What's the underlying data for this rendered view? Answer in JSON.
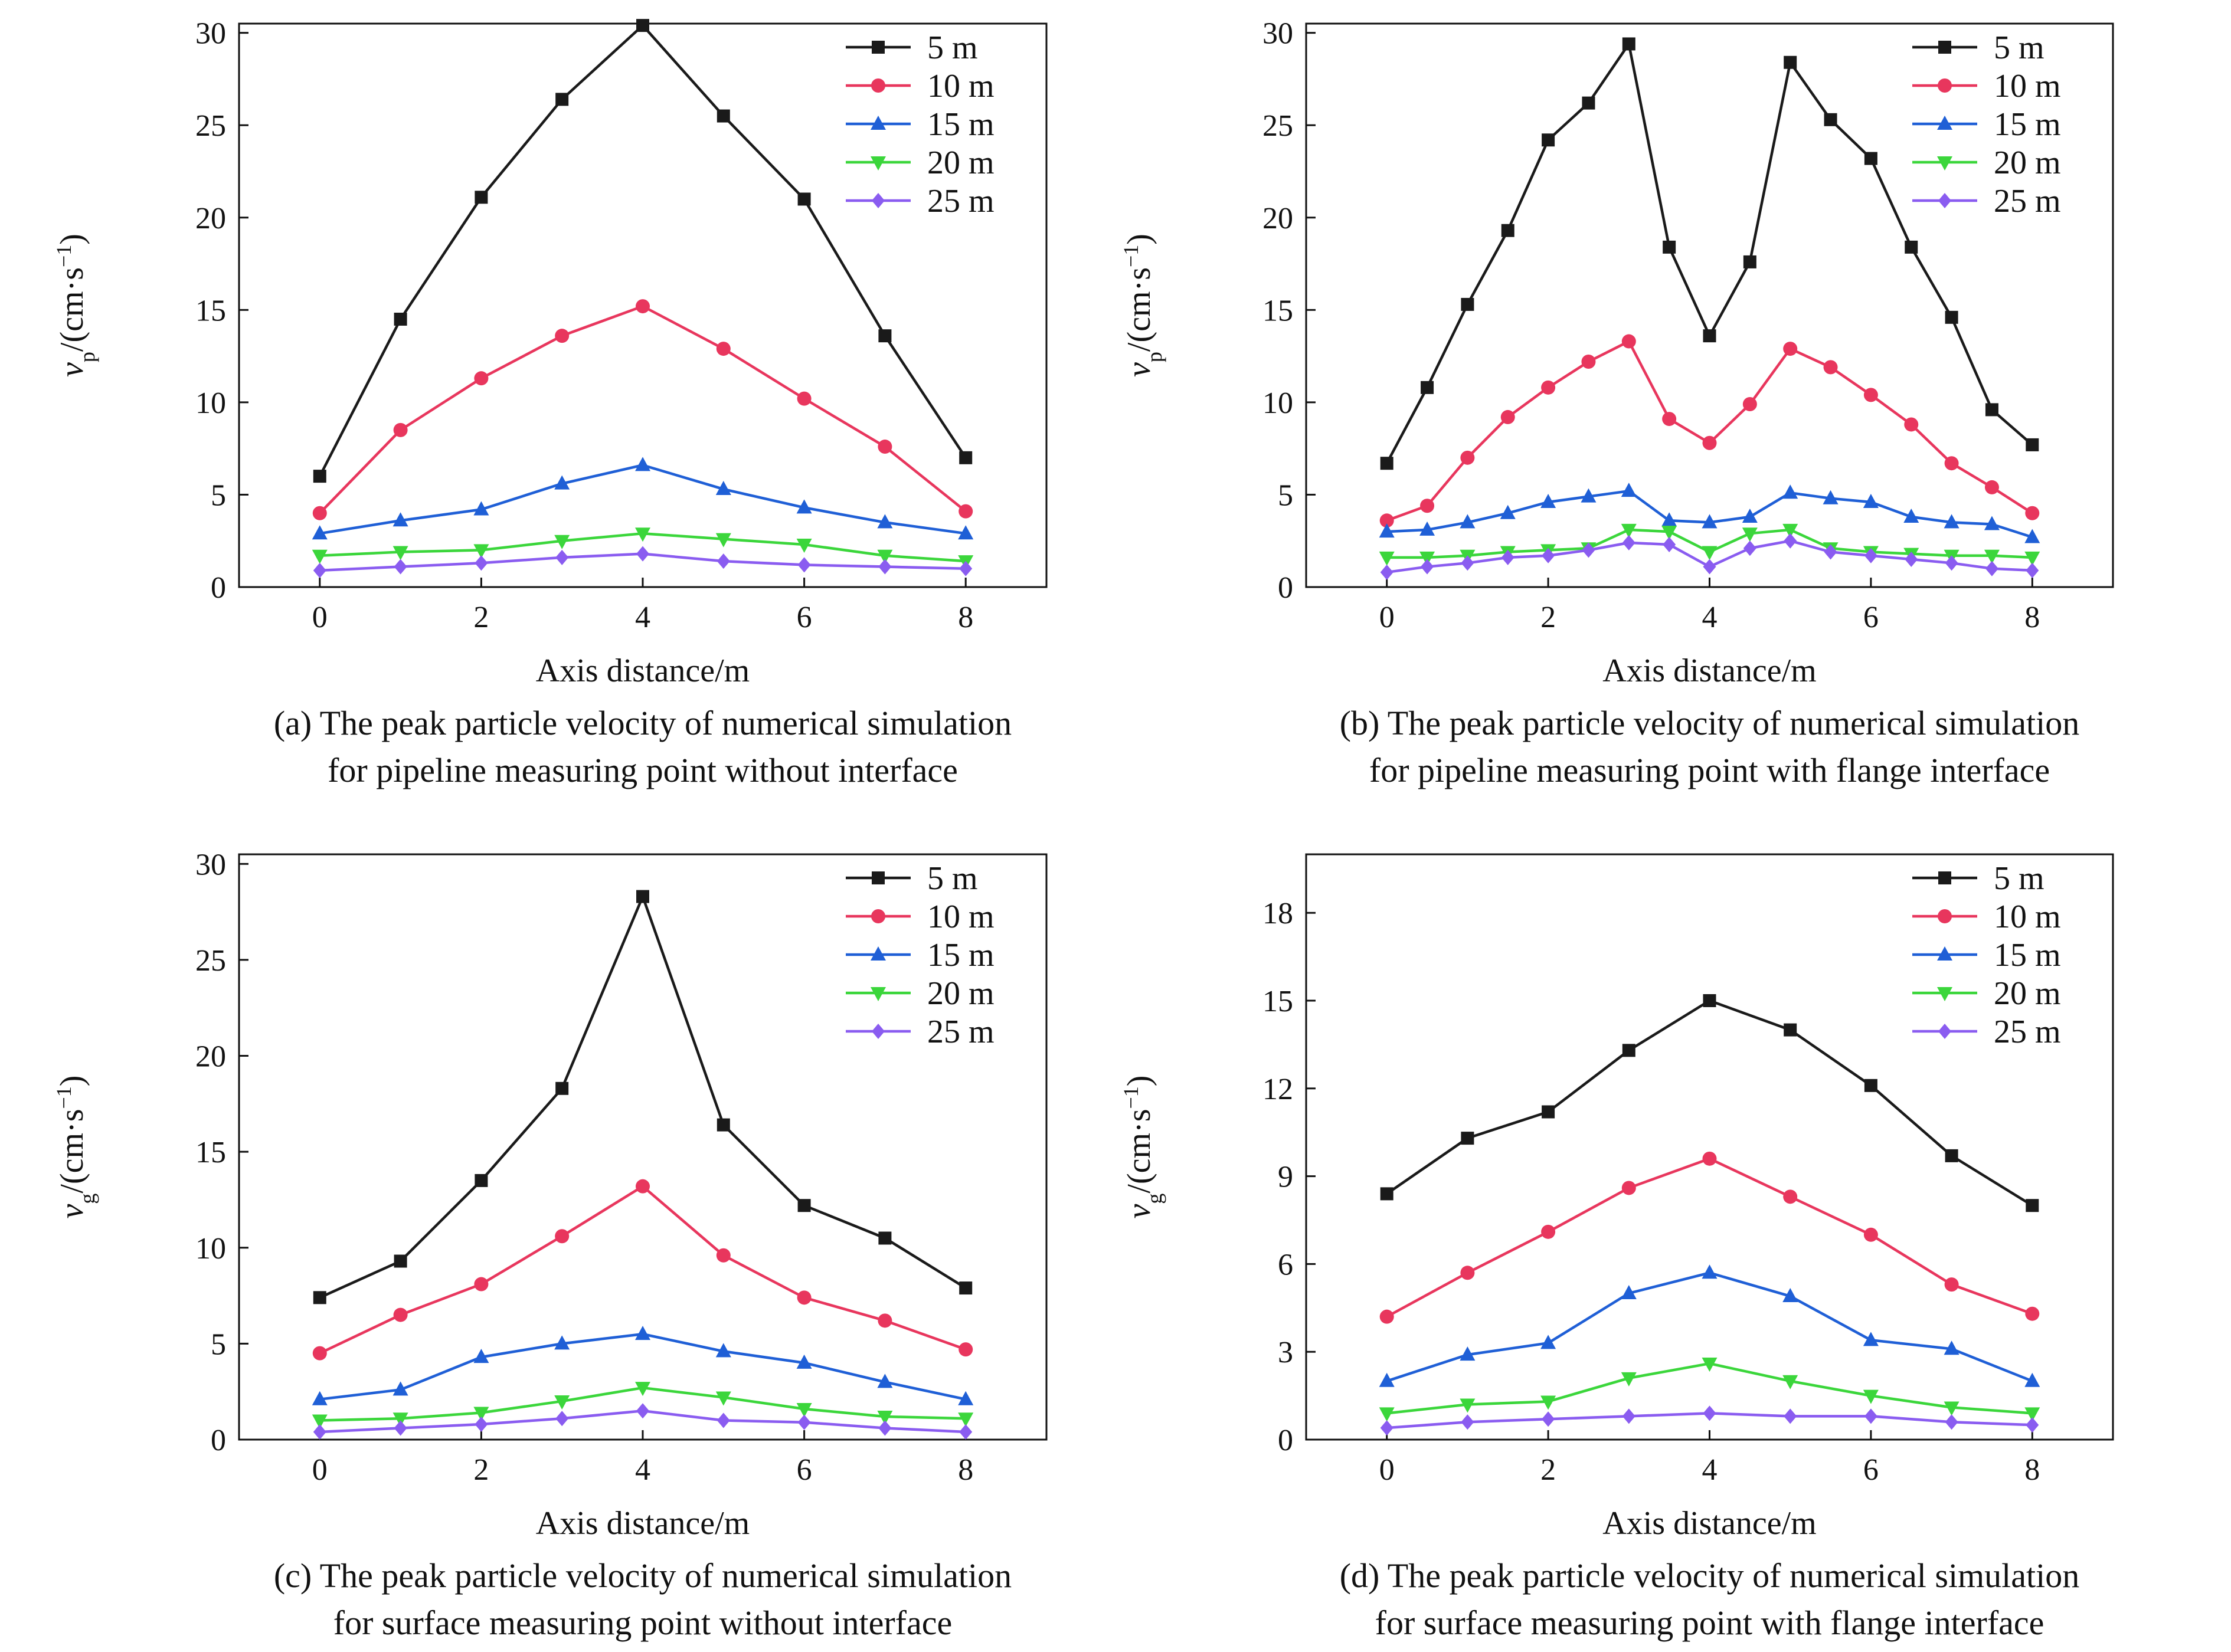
{
  "figure": {
    "series_names": [
      "5 m",
      "10 m",
      "15 m",
      "20 m",
      "25 m"
    ],
    "series_colors": [
      "#1a1a1a",
      "#e8365d",
      "#1f5fd6",
      "#3bd63b",
      "#8a5cf0"
    ],
    "series_markers": [
      "square",
      "circle",
      "triangle-up",
      "triangle-down",
      "diamond"
    ]
  },
  "chart_data": [
    {
      "type": "line",
      "ylabel": "v_p/(cm·s^-1)",
      "ylabel_var": "v",
      "ylabel_sub": "p",
      "ylabel_unit": "/(cm·s",
      "ylabel_exp": "−1",
      "ylabel_close": ")",
      "xlabel": "Axis distance/m",
      "xlim": [
        -1,
        9
      ],
      "ylim": [
        0,
        30.5
      ],
      "xticks": [
        0,
        2,
        4,
        6,
        8
      ],
      "yticks": [
        0,
        5,
        10,
        15,
        20,
        25,
        30
      ],
      "legend": "top-right",
      "caption_lines": [
        "(a) The peak particle velocity of numerical simulation",
        "for pipeline measuring point without interface"
      ],
      "series": [
        {
          "name": "5 m",
          "x": [
            0,
            1,
            2,
            3,
            4,
            5,
            6,
            7,
            8
          ],
          "y": [
            6.0,
            14.5,
            21.1,
            26.4,
            30.4,
            25.5,
            21.0,
            13.6,
            7.0
          ]
        },
        {
          "name": "10 m",
          "x": [
            0,
            1,
            2,
            3,
            4,
            5,
            6,
            7,
            8
          ],
          "y": [
            4.0,
            8.5,
            11.3,
            13.6,
            15.2,
            12.9,
            10.2,
            7.6,
            4.1
          ]
        },
        {
          "name": "15 m",
          "x": [
            0,
            1,
            2,
            3,
            4,
            5,
            6,
            7,
            8
          ],
          "y": [
            2.9,
            3.6,
            4.2,
            5.6,
            6.6,
            5.3,
            4.3,
            3.5,
            2.9
          ]
        },
        {
          "name": "20 m",
          "x": [
            0,
            1,
            2,
            3,
            4,
            5,
            6,
            7,
            8
          ],
          "y": [
            1.7,
            1.9,
            2.0,
            2.5,
            2.9,
            2.6,
            2.3,
            1.7,
            1.4
          ]
        },
        {
          "name": "25 m",
          "x": [
            0,
            1,
            2,
            3,
            4,
            5,
            6,
            7,
            8
          ],
          "y": [
            0.9,
            1.1,
            1.3,
            1.6,
            1.8,
            1.4,
            1.2,
            1.1,
            1.0
          ]
        }
      ]
    },
    {
      "type": "line",
      "ylabel": "v_p/(cm·s^-1)",
      "ylabel_var": "v",
      "ylabel_sub": "p",
      "ylabel_unit": "/(cm·s",
      "ylabel_exp": "−1",
      "ylabel_close": ")",
      "xlabel": "Axis distance/m",
      "xlim": [
        -1,
        9
      ],
      "ylim": [
        0,
        30.5
      ],
      "xticks": [
        0,
        2,
        4,
        6,
        8
      ],
      "yticks": [
        0,
        5,
        10,
        15,
        20,
        25,
        30
      ],
      "legend": "top-right",
      "caption_lines": [
        "(b) The peak particle velocity of numerical simulation",
        "for pipeline measuring point with flange interface"
      ],
      "series": [
        {
          "name": "5 m",
          "x": [
            0,
            0.5,
            1,
            1.5,
            2,
            2.5,
            3,
            3.5,
            4,
            4.5,
            5,
            5.5,
            6,
            6.5,
            7,
            7.5,
            8
          ],
          "y": [
            6.7,
            10.8,
            15.3,
            19.3,
            24.2,
            26.2,
            29.4,
            18.4,
            13.6,
            17.6,
            28.4,
            25.3,
            23.2,
            18.4,
            14.6,
            9.6,
            7.7
          ]
        },
        {
          "name": "10 m",
          "x": [
            0,
            0.5,
            1,
            1.5,
            2,
            2.5,
            3,
            3.5,
            4,
            4.5,
            5,
            5.5,
            6,
            6.5,
            7,
            7.5,
            8
          ],
          "y": [
            3.6,
            4.4,
            7.0,
            9.2,
            10.8,
            12.2,
            13.3,
            9.1,
            7.8,
            9.9,
            12.9,
            11.9,
            10.4,
            8.8,
            6.7,
            5.4,
            4.0
          ]
        },
        {
          "name": "15 m",
          "x": [
            0,
            0.5,
            1,
            1.5,
            2,
            2.5,
            3,
            3.5,
            4,
            4.5,
            5,
            5.5,
            6,
            6.5,
            7,
            7.5,
            8
          ],
          "y": [
            3.0,
            3.1,
            3.5,
            4.0,
            4.6,
            4.9,
            5.2,
            3.6,
            3.5,
            3.8,
            5.1,
            4.8,
            4.6,
            3.8,
            3.5,
            3.4,
            2.7
          ]
        },
        {
          "name": "20 m",
          "x": [
            0,
            0.5,
            1,
            1.5,
            2,
            2.5,
            3,
            3.5,
            4,
            4.5,
            5,
            5.5,
            6,
            6.5,
            7,
            7.5,
            8
          ],
          "y": [
            1.6,
            1.6,
            1.7,
            1.9,
            2.0,
            2.1,
            3.1,
            3.0,
            1.9,
            2.9,
            3.1,
            2.1,
            1.9,
            1.8,
            1.7,
            1.7,
            1.6
          ]
        },
        {
          "name": "25 m",
          "x": [
            0,
            0.5,
            1,
            1.5,
            2,
            2.5,
            3,
            3.5,
            4,
            4.5,
            5,
            5.5,
            6,
            6.5,
            7,
            7.5,
            8
          ],
          "y": [
            0.8,
            1.1,
            1.3,
            1.6,
            1.7,
            2.0,
            2.4,
            2.3,
            1.1,
            2.1,
            2.5,
            1.9,
            1.7,
            1.5,
            1.3,
            1.0,
            0.9
          ]
        }
      ]
    },
    {
      "type": "line",
      "ylabel": "v_g/(cm·s^-1)",
      "ylabel_var": "v",
      "ylabel_sub": "g",
      "ylabel_unit": "/(cm·s",
      "ylabel_exp": "−1",
      "ylabel_close": ")",
      "xlabel": "Axis distance/m",
      "xlim": [
        -1,
        9
      ],
      "ylim": [
        0,
        30.5
      ],
      "xticks": [
        0,
        2,
        4,
        6,
        8
      ],
      "yticks": [
        0,
        5,
        10,
        15,
        20,
        25,
        30
      ],
      "legend": "top-right",
      "caption_lines": [
        "(c) The peak particle velocity of numerical simulation",
        "for surface measuring point without interface"
      ],
      "series": [
        {
          "name": "5 m",
          "x": [
            0,
            1,
            2,
            3,
            4,
            5,
            6,
            7,
            8
          ],
          "y": [
            7.4,
            9.3,
            13.5,
            18.3,
            28.3,
            16.4,
            12.2,
            10.5,
            7.9
          ]
        },
        {
          "name": "10 m",
          "x": [
            0,
            1,
            2,
            3,
            4,
            5,
            6,
            7,
            8
          ],
          "y": [
            4.5,
            6.5,
            8.1,
            10.6,
            13.2,
            9.6,
            7.4,
            6.2,
            4.7
          ]
        },
        {
          "name": "15 m",
          "x": [
            0,
            1,
            2,
            3,
            4,
            5,
            6,
            7,
            8
          ],
          "y": [
            2.1,
            2.6,
            4.3,
            5.0,
            5.5,
            4.6,
            4.0,
            3.0,
            2.1
          ]
        },
        {
          "name": "20 m",
          "x": [
            0,
            1,
            2,
            3,
            4,
            5,
            6,
            7,
            8
          ],
          "y": [
            1.0,
            1.1,
            1.4,
            2.0,
            2.7,
            2.2,
            1.6,
            1.2,
            1.1
          ]
        },
        {
          "name": "25 m",
          "x": [
            0,
            1,
            2,
            3,
            4,
            5,
            6,
            7,
            8
          ],
          "y": [
            0.4,
            0.6,
            0.8,
            1.1,
            1.5,
            1.0,
            0.9,
            0.6,
            0.4
          ]
        }
      ]
    },
    {
      "type": "line",
      "ylabel": "v_g/(cm·s^-1)",
      "ylabel_var": "v",
      "ylabel_sub": "g",
      "ylabel_unit": "/(cm·s",
      "ylabel_exp": "−1",
      "ylabel_close": ")",
      "xlabel": "Axis distance/m",
      "xlim": [
        -1,
        9
      ],
      "ylim": [
        0,
        20
      ],
      "xticks": [
        0,
        2,
        4,
        6,
        8
      ],
      "yticks": [
        0,
        3,
        6,
        9,
        12,
        15,
        18
      ],
      "legend": "top-right",
      "caption_lines": [
        "(d) The peak particle velocity of numerical simulation",
        "for surface measuring point with flange interface"
      ],
      "series": [
        {
          "name": "5 m",
          "x": [
            0,
            1,
            2,
            3,
            4,
            5,
            6,
            7,
            8
          ],
          "y": [
            8.4,
            10.3,
            11.2,
            13.3,
            15.0,
            14.0,
            12.1,
            9.7,
            8.0
          ]
        },
        {
          "name": "10 m",
          "x": [
            0,
            1,
            2,
            3,
            4,
            5,
            6,
            7,
            8
          ],
          "y": [
            4.2,
            5.7,
            7.1,
            8.6,
            9.6,
            8.3,
            7.0,
            5.3,
            4.3
          ]
        },
        {
          "name": "15 m",
          "x": [
            0,
            1,
            2,
            3,
            4,
            5,
            6,
            7,
            8
          ],
          "y": [
            2.0,
            2.9,
            3.3,
            5.0,
            5.7,
            4.9,
            3.4,
            3.1,
            2.0
          ]
        },
        {
          "name": "20 m",
          "x": [
            0,
            1,
            2,
            3,
            4,
            5,
            6,
            7,
            8
          ],
          "y": [
            0.9,
            1.2,
            1.3,
            2.1,
            2.6,
            2.0,
            1.5,
            1.1,
            0.9
          ]
        },
        {
          "name": "25 m",
          "x": [
            0,
            1,
            2,
            3,
            4,
            5,
            6,
            7,
            8
          ],
          "y": [
            0.4,
            0.6,
            0.7,
            0.8,
            0.9,
            0.8,
            0.8,
            0.6,
            0.5
          ]
        }
      ]
    }
  ]
}
